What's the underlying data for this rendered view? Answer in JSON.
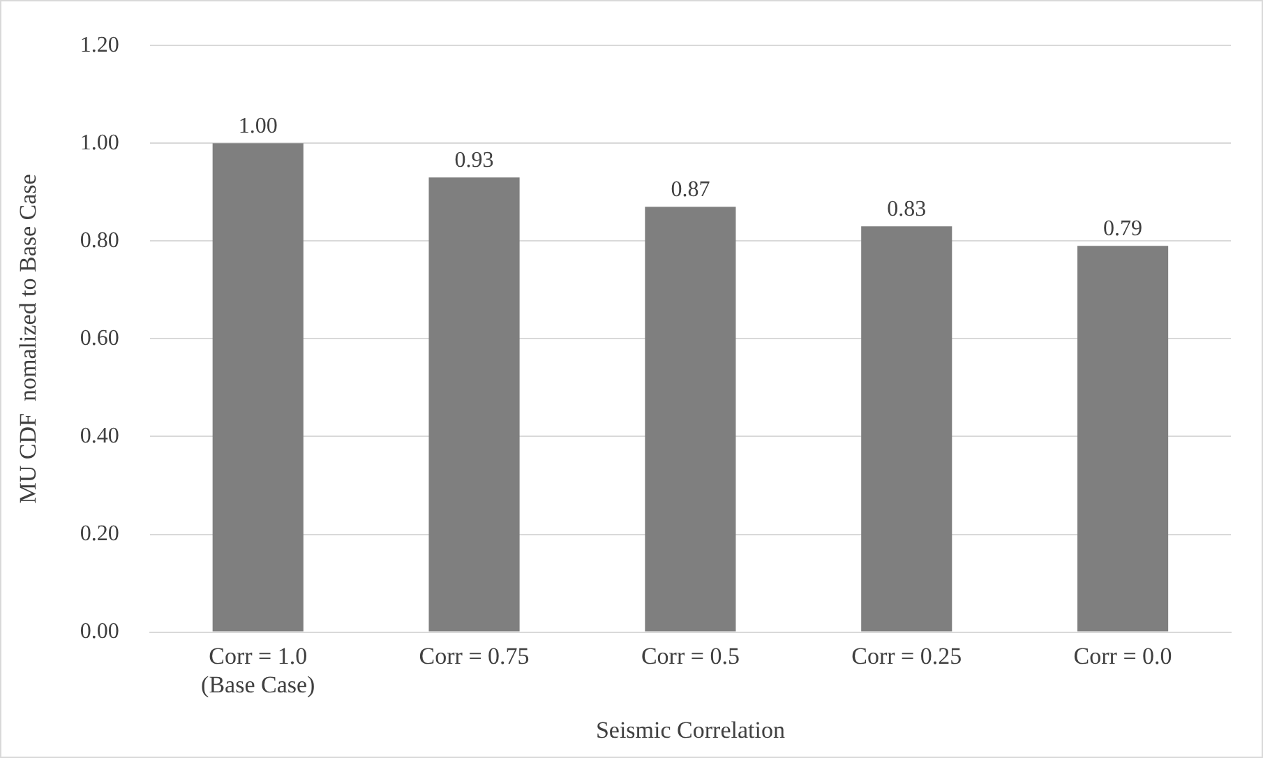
{
  "chart_data": {
    "type": "bar",
    "xlabel": "Seismic Correlation",
    "ylabel": "MU CDF  nomalized to Base Case",
    "categories": [
      "Corr = 1.0\n(Base Case)",
      "Corr = 0.75",
      "Corr = 0.5",
      "Corr = 0.25",
      "Corr = 0.0"
    ],
    "values": [
      1.0,
      0.93,
      0.87,
      0.83,
      0.79
    ],
    "value_labels": [
      "1.00",
      "0.93",
      "0.87",
      "0.83",
      "0.79"
    ],
    "color": "#7f7f7f",
    "ylim": [
      0,
      1.2
    ],
    "yticks": [
      {
        "value": 0,
        "label": "0.00"
      },
      {
        "value": 0.2,
        "label": "0.20"
      },
      {
        "value": 0.4,
        "label": "0.40"
      },
      {
        "value": 0.6,
        "label": "0.60"
      },
      {
        "value": 0.8,
        "label": "0.80"
      },
      {
        "value": 1.0,
        "label": "1.00"
      },
      {
        "value": 1.2,
        "label": "1.20"
      }
    ],
    "grid": "y",
    "legend": false
  }
}
